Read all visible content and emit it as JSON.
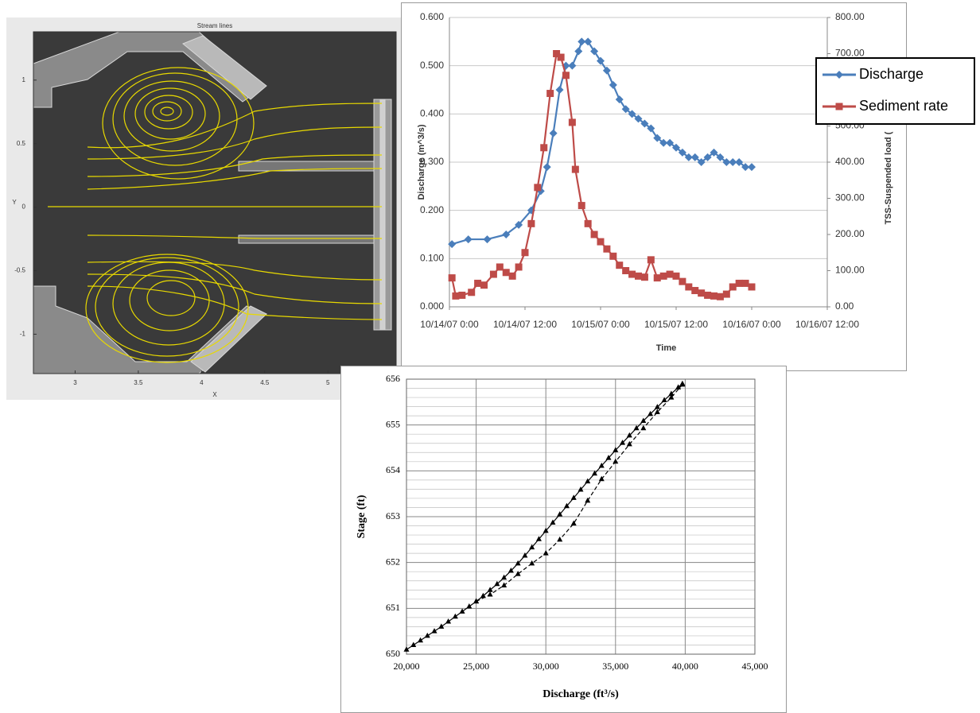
{
  "chart_data": [
    {
      "type": "streamplot",
      "title": "Stream lines",
      "x_label": "X",
      "y_label": "Y",
      "xlim": [
        2.67,
        5.54
      ],
      "xticks": [
        3,
        3.5,
        4,
        4.5,
        5
      ],
      "ylim": [
        -1.31,
        1.38
      ],
      "yticks": [
        -1,
        -0.5,
        0,
        0.5,
        1
      ]
    },
    {
      "type": "line",
      "x_label": "Time",
      "y_label": "Discharge (m^3/s)",
      "y2_label": "TSS-Suspended load (",
      "xlim": [
        0,
        60
      ],
      "xticks": [
        {
          "value": 0,
          "label": "10/14/07 0:00"
        },
        {
          "value": 12,
          "label": "10/14/07 12:00"
        },
        {
          "value": 24,
          "label": "10/15/07 0:00"
        },
        {
          "value": 36,
          "label": "10/15/07 12:00"
        },
        {
          "value": 48,
          "label": "10/16/07 0:00"
        },
        {
          "value": 60,
          "label": "10/16/07 12:00"
        }
      ],
      "ylim": [
        0,
        0.6
      ],
      "yticks": [
        {
          "value": 0,
          "label": "0.000"
        },
        {
          "value": 0.1,
          "label": "0.100"
        },
        {
          "value": 0.2,
          "label": "0.200"
        },
        {
          "value": 0.3,
          "label": "0.300"
        },
        {
          "value": 0.4,
          "label": "0.400"
        },
        {
          "value": 0.5,
          "label": "0.500"
        },
        {
          "value": 0.6,
          "label": "0.600"
        }
      ],
      "y2lim": [
        0,
        800
      ],
      "y2ticks": [
        {
          "value": 0,
          "label": "0.00"
        },
        {
          "value": 100,
          "label": "100.00"
        },
        {
          "value": 200,
          "label": "200.00"
        },
        {
          "value": 300,
          "label": "300.00"
        },
        {
          "value": 400,
          "label": "400.00"
        },
        {
          "value": 500,
          "label": "500.00"
        },
        {
          "value": 600,
          "label": "600.00"
        },
        {
          "value": 700,
          "label": "700.00"
        },
        {
          "value": 800,
          "label": "800.00"
        }
      ],
      "grid": true,
      "legend": "right",
      "series": [
        {
          "name": "Discharge",
          "color": "#4a7ebb",
          "marker": "diamond",
          "x": [
            0.4,
            3,
            6,
            9,
            11,
            13,
            14.5,
            15.5,
            16.5,
            17.5,
            18.5,
            19.5,
            20.5,
            21,
            22,
            23,
            24,
            25,
            26,
            27,
            28,
            29,
            30,
            31,
            32,
            33,
            34,
            35,
            36,
            37,
            38,
            39,
            40,
            41,
            42,
            43,
            44,
            45,
            46,
            47,
            48
          ],
          "values": [
            0.13,
            0.14,
            0.14,
            0.15,
            0.17,
            0.2,
            0.24,
            0.29,
            0.36,
            0.45,
            0.5,
            0.5,
            0.53,
            0.55,
            0.55,
            0.53,
            0.51,
            0.49,
            0.46,
            0.43,
            0.41,
            0.4,
            0.39,
            0.38,
            0.37,
            0.35,
            0.34,
            0.34,
            0.33,
            0.32,
            0.31,
            0.31,
            0.3,
            0.31,
            0.32,
            0.31,
            0.3,
            0.3,
            0.3,
            0.29,
            0.29
          ]
        },
        {
          "name": "Sediment rate",
          "color": "#be4b48",
          "marker": "square",
          "axis": "y2",
          "x": [
            0.4,
            1,
            2,
            3.5,
            4.5,
            5.5,
            7,
            8,
            9,
            10,
            11,
            12,
            13,
            14,
            15,
            16,
            17,
            17.7,
            18.5,
            19.5,
            20,
            21,
            22,
            23,
            24,
            25,
            26,
            27,
            28,
            29,
            30,
            31,
            32,
            33,
            34,
            35,
            36,
            37,
            38,
            39,
            40,
            41,
            42,
            43,
            44,
            45,
            46,
            47,
            48
          ],
          "values": [
            80,
            30,
            32,
            40,
            65,
            60,
            90,
            110,
            95,
            85,
            110,
            150,
            230,
            330,
            440,
            590,
            700,
            690,
            640,
            510,
            380,
            280,
            230,
            200,
            180,
            160,
            140,
            115,
            100,
            90,
            85,
            82,
            130,
            80,
            85,
            90,
            85,
            70,
            55,
            45,
            38,
            32,
            30,
            28,
            35,
            55,
            65,
            65,
            55
          ]
        }
      ]
    },
    {
      "type": "scatter",
      "x_label": "Discharge (ft³/s)",
      "y_label": "Stage (ft)",
      "xlim": [
        20000,
        45000
      ],
      "xticks": [
        {
          "value": 20000,
          "label": "20,000"
        },
        {
          "value": 25000,
          "label": "25,000"
        },
        {
          "value": 30000,
          "label": "30,000"
        },
        {
          "value": 35000,
          "label": "35,000"
        },
        {
          "value": 40000,
          "label": "40,000"
        },
        {
          "value": 45000,
          "label": "45,000"
        }
      ],
      "ylim": [
        650,
        656
      ],
      "yticks": [
        650,
        651,
        652,
        653,
        654,
        655,
        656
      ],
      "grid": true,
      "y_minor_grid": 0.2,
      "series": [
        {
          "color": "#000000",
          "marker": "triangle",
          "line": "solid",
          "x": [
            20000,
            20500,
            21000,
            21500,
            22000,
            22500,
            23000,
            23500,
            24000,
            24500,
            25000,
            25500,
            26000,
            26500,
            27000,
            27500,
            28000,
            28500,
            29000,
            29500,
            30000,
            30500,
            31000,
            31500,
            32000,
            32500,
            33000,
            33500,
            34000,
            34500,
            35000,
            35500,
            36000,
            36500,
            37000,
            37500,
            38000,
            38500,
            39000,
            39500,
            39800
          ],
          "values": [
            650.1,
            650.2,
            650.3,
            650.4,
            650.5,
            650.6,
            650.71,
            650.82,
            650.93,
            651.04,
            651.15,
            651.27,
            651.4,
            651.53,
            651.67,
            651.82,
            651.98,
            652.15,
            652.33,
            652.51,
            652.69,
            652.87,
            653.05,
            653.23,
            653.41,
            653.59,
            653.77,
            653.94,
            654.11,
            654.28,
            654.45,
            654.61,
            654.77,
            654.93,
            655.09,
            655.24,
            655.39,
            655.54,
            655.68,
            655.82,
            655.9
          ]
        },
        {
          "color": "#000000",
          "marker": "triangle",
          "line": "dashed",
          "x": [
            25000,
            26000,
            27000,
            28000,
            29000,
            30000,
            31000,
            32000,
            33000,
            34000,
            35000,
            36000,
            37000,
            38000,
            39000,
            39800
          ],
          "values": [
            651.15,
            651.3,
            651.5,
            651.75,
            651.98,
            652.2,
            652.5,
            652.85,
            653.35,
            653.82,
            654.2,
            654.58,
            654.93,
            655.28,
            655.6,
            655.88
          ]
        }
      ]
    }
  ]
}
